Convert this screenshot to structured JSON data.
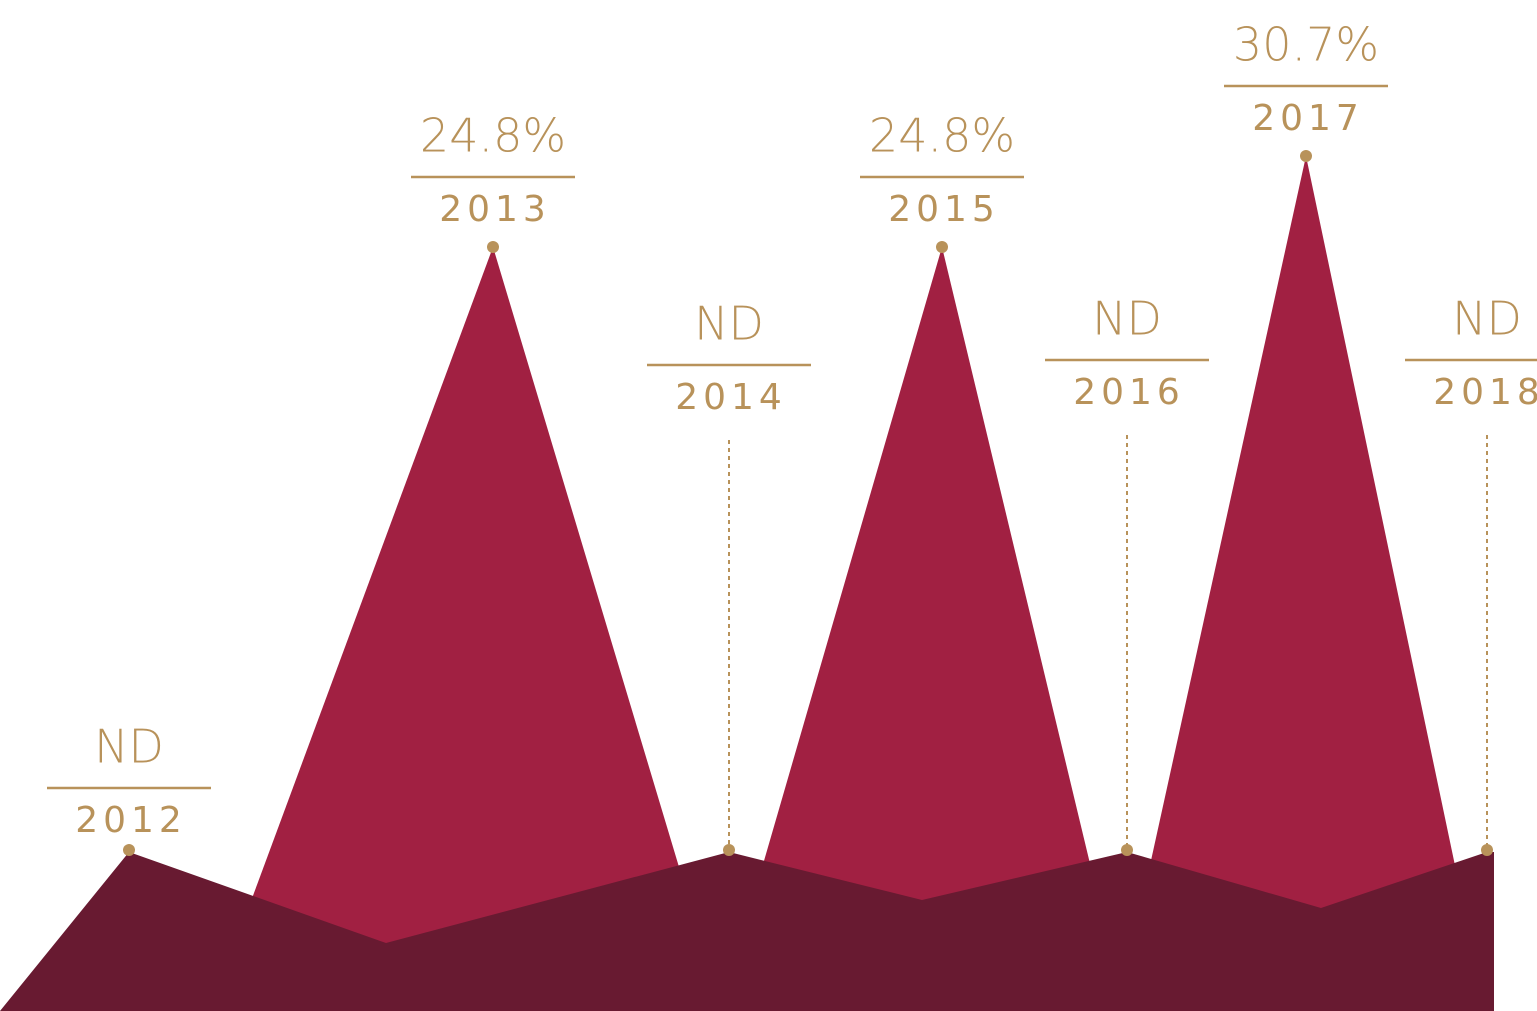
{
  "chart_data": {
    "type": "area",
    "categories": [
      "2012",
      "2013",
      "2014",
      "2015",
      "2016",
      "2017",
      "2018"
    ],
    "values": [
      null,
      24.8,
      null,
      24.8,
      null,
      30.7,
      null
    ],
    "value_labels": [
      "ND",
      "24.8%",
      "ND",
      "24.8%",
      "ND",
      "30.7%",
      "ND"
    ],
    "color": "#a12042",
    "base_color": "#681a31",
    "label_color": "#b8925a"
  }
}
